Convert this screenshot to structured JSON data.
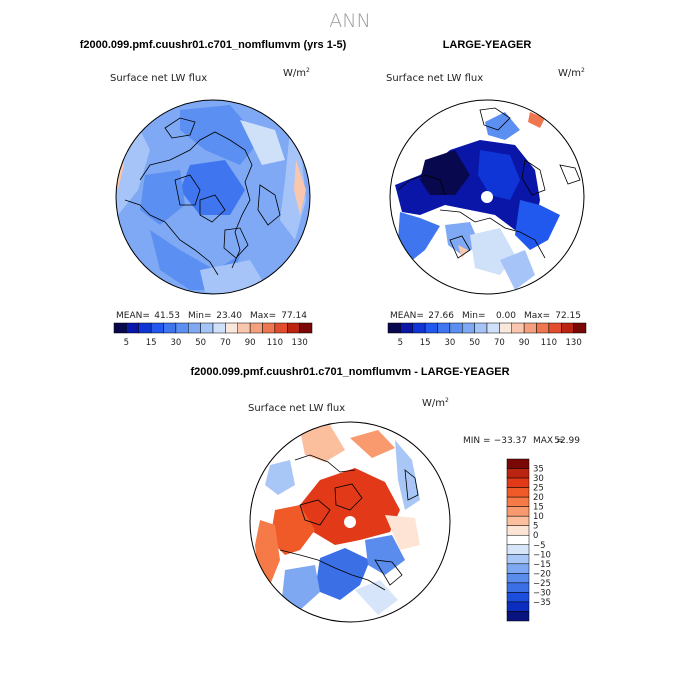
{
  "figure": {
    "title": "ANN",
    "panel_a_heading": "f2000.099.pmf.cuushr01.c701_nomflumvm (yrs 1-5)",
    "panel_b_heading": "LARGE-YEAGER",
    "panel_c_heading": "f2000.099.pmf.cuushr01.c701_nomflumvm - LARGE-YEAGER"
  },
  "chart_data": [
    {
      "type": "heatmap",
      "projection": "polar-stereographic-north",
      "variable": "Surface net LW flux",
      "units": "W/m",
      "units_superscript": "2",
      "stats": {
        "mean_label": "MEAN=",
        "mean": "41.53",
        "min_label": "Min=",
        "min": "23.40",
        "max_label": "Max=",
        "max": "77.14"
      },
      "colorbar": {
        "orientation": "horizontal",
        "levels": [
          5,
          10,
          15,
          20,
          30,
          40,
          50,
          60,
          70,
          80,
          90,
          100,
          110,
          120,
          130
        ],
        "tick_labels": [
          "5",
          "15",
          "30",
          "50",
          "70",
          "90",
          "110",
          "130"
        ],
        "colors": [
          "#08084e",
          "#0a16a8",
          "#0f35d6",
          "#2158ee",
          "#3f76f0",
          "#5c8ff2",
          "#7fa9f4",
          "#a6c4f7",
          "#cfe0f9",
          "#fbe7dc",
          "#f8c7ad",
          "#f4a07d",
          "#ee7750",
          "#e24d2d",
          "#bb2410",
          "#7a0806"
        ]
      }
    },
    {
      "type": "heatmap",
      "projection": "polar-stereographic-north",
      "variable": "Surface net LW flux",
      "units": "W/m",
      "units_superscript": "2",
      "stats": {
        "mean_label": "MEAN=",
        "mean": "27.66",
        "min_label": "Min=",
        "min": "0.00",
        "max_label": "Max=",
        "max": "72.15"
      },
      "colorbar": {
        "orientation": "horizontal",
        "levels": [
          5,
          10,
          15,
          20,
          30,
          40,
          50,
          60,
          70,
          80,
          90,
          100,
          110,
          120,
          130
        ],
        "tick_labels": [
          "5",
          "15",
          "30",
          "50",
          "70",
          "90",
          "110",
          "130"
        ],
        "colors": [
          "#08084e",
          "#0a16a8",
          "#0f35d6",
          "#2158ee",
          "#3f76f0",
          "#5c8ff2",
          "#7fa9f4",
          "#a6c4f7",
          "#cfe0f9",
          "#fbe7dc",
          "#f8c7ad",
          "#f4a07d",
          "#ee7750",
          "#e24d2d",
          "#bb2410",
          "#7a0806"
        ]
      }
    },
    {
      "type": "heatmap",
      "projection": "polar-stereographic-north",
      "variable": "Surface net LW flux",
      "units": "W/m",
      "units_superscript": "2",
      "stats": {
        "min_label": "MIN =",
        "min": "−33.37",
        "max_label": "MAX =",
        "max": "52.99"
      },
      "colorbar": {
        "orientation": "vertical",
        "levels": [
          -35,
          -30,
          -25,
          -20,
          -15,
          -10,
          -5,
          0,
          5,
          10,
          15,
          20,
          25,
          30,
          35
        ],
        "tick_labels": [
          "35",
          "30",
          "25",
          "20",
          "15",
          "10",
          "5",
          "0",
          "−5",
          "−10",
          "−15",
          "−20",
          "−25",
          "−30",
          "−35"
        ],
        "colors": [
          "#7a0806",
          "#bb2410",
          "#e23a18",
          "#f05a28",
          "#f57a48",
          "#f89a6e",
          "#fbbf9e",
          "#fde4d4",
          "#ffffff",
          "#d7e5fb",
          "#a9c7f6",
          "#7ea9f2",
          "#5a8cee",
          "#3a6fe6",
          "#1c4ede",
          "#0b2dc0",
          "#08137e"
        ]
      }
    }
  ]
}
